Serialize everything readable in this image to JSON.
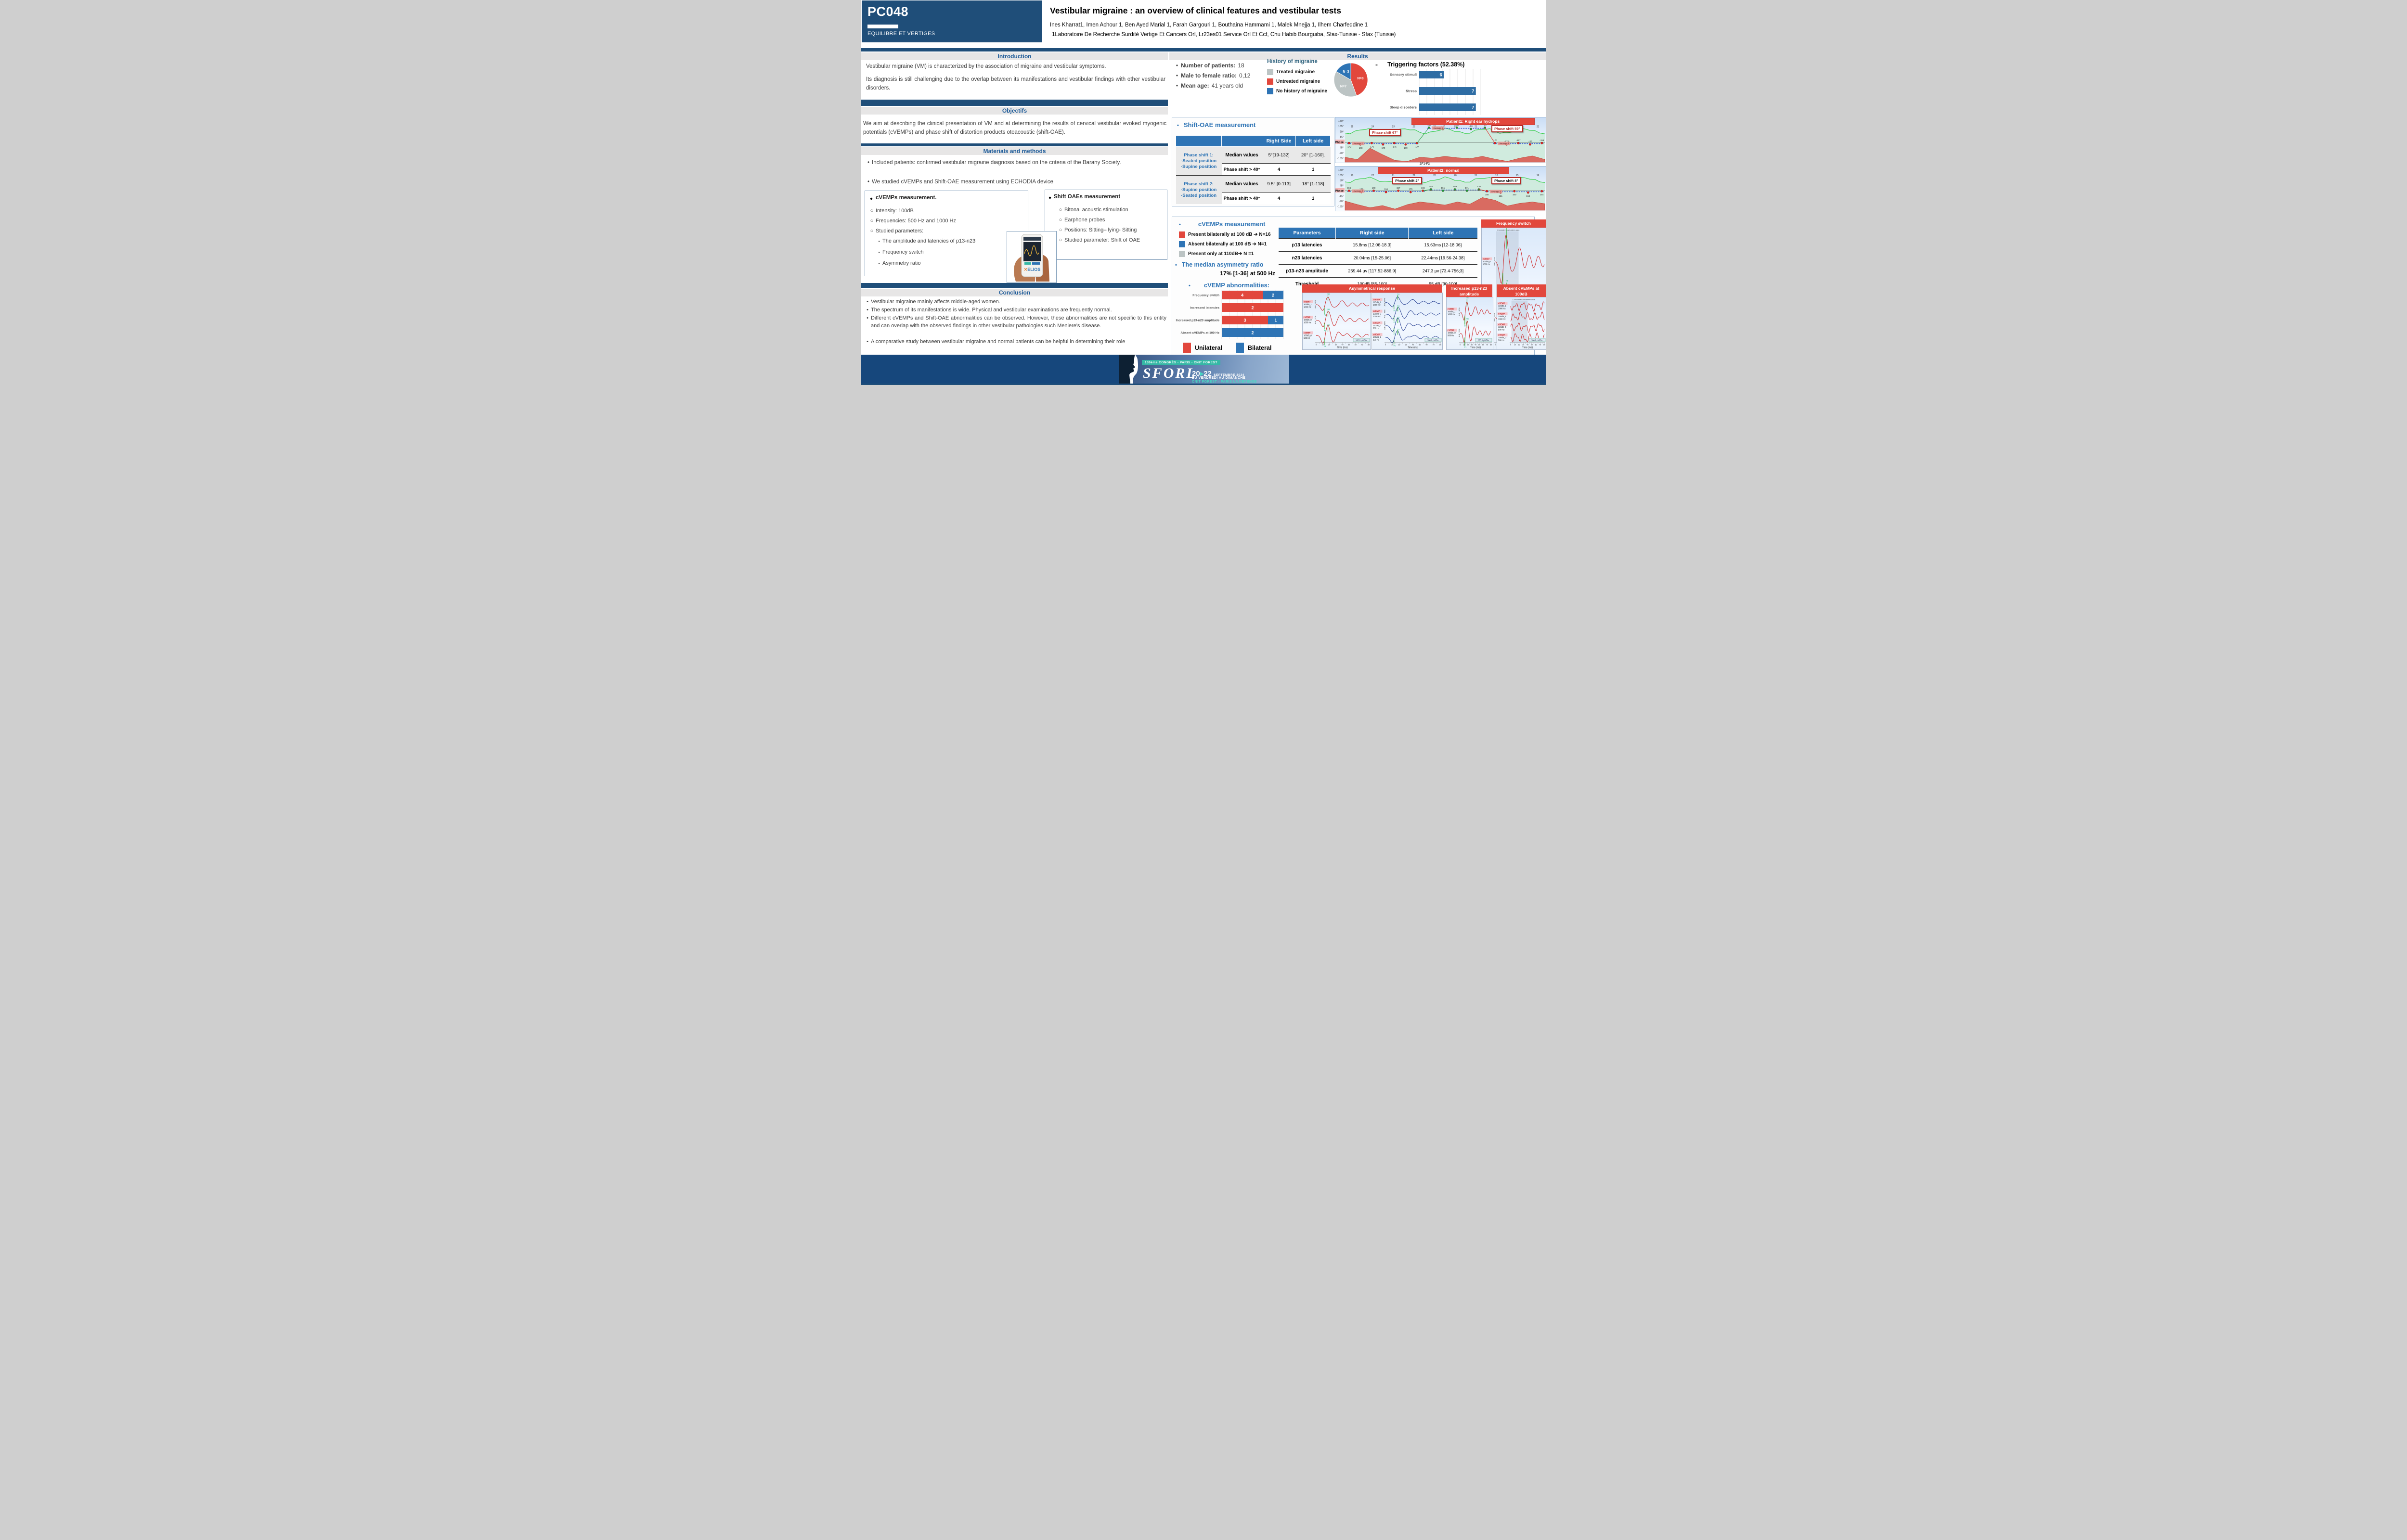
{
  "poster": {
    "code": "PC048",
    "track": "EQUILIBRE ET VERTIGES",
    "title": "Vestibular migraine : an overview of clinical features and vestibular tests",
    "authors": "Ines Kharrat1, Imen Achour 1, Ben Ayed Marial 1, Farah Gargouri 1, Bouthaina Hammami 1, Malek Mnejja 1, Ilhem Charfeddine 1",
    "affiliation": "1Laboratoire De Recherche Surdité Vertige Et Cancers Orl, Lr23es01 Service Orl Et Ccf, Chu Habib Bourguiba, Sfax-Tunisie - Sfax (Tunisie)"
  },
  "left": {
    "intro": {
      "title": "Introduction",
      "p1": "Vestibular migraine (VM) is characterized by the association of migraine and vestibular symptoms.",
      "p2": "Its diagnosis is still challenging due to the overlap between its manifestations and vestibular findings with other vestibular disorders."
    },
    "objectives": {
      "title": "Objectifs",
      "text": "We aim at describing the clinical presentation of VM and at determining the results of cervical vestibular evoked myogenic potentials (cVEMPs) and phase shift of distortion products otoacoustic (shift-OAE)."
    },
    "methods": {
      "title": "Materials and methods",
      "b1": "Included patients: confirmed vestibular migraine diagnosis based on the criteria of the Barany Society.",
      "b2": "We studied cVEMPs and Shift-OAE measurement using ECHODIA device",
      "cvemps_box": {
        "title": "cVEMPs measurement.",
        "items": [
          "Intensity: 100dB",
          "Frequencies: 500 Hz and 1000 Hz",
          "Studied parameters:"
        ],
        "subitems": [
          "The amplitude and latencies of p13-n23",
          "Frequency switch",
          "Asymmetry ratio"
        ]
      },
      "shift_box": {
        "title": "Shift OAEs measurement",
        "items": [
          "Bitonal acoustic stimulation",
          "Earphone probes",
          "Positions: Sitting– lying- Sitting",
          "Studied parameter: Shift of OAE"
        ]
      },
      "device_logo": "ELIOS"
    },
    "conclusion": {
      "title": "Conclusion",
      "bullets": [
        "Vestibular migraine mainly affects middle-aged women.",
        "The spectrum of its manifestations is wide. Physical and vestibular examinations are frequently normal.",
        "Different cVEMPs and Shift-OAE abnormalities can be observed. However, these abnormalities are not specific to this entity and can overlap with the observed findings in other vestibular pathologies such Meniere's disease.",
        "A comparative study between vestibular migraine and normal patients can be helpful in determining their role"
      ]
    }
  },
  "results": {
    "title": "Results",
    "demographics": [
      {
        "label": "Number of patients:",
        "value": "18"
      },
      {
        "label": "Male to female ratio:",
        "value": "0,12"
      },
      {
        "label": "Mean age:",
        "value": "41 years old"
      }
    ],
    "dash": "-",
    "shift_oae": {
      "title": "Shift-OAE measurement",
      "col_right": "Right Side",
      "col_left": "Left side",
      "group1": {
        "l0": "Phase shift 1:",
        "l1": "-Seated position",
        "l2": "-Supine position",
        "median_label": "Median values",
        "median_right": "5°[19-132]",
        "median_left": "20° [1-160].",
        "gt_label": "Phase shift > 40°",
        "gt_right": "4",
        "gt_left": "1"
      },
      "group2": {
        "l0": "Phase shift 2:",
        "l1": "-Supine position",
        "l2": "-Seated position",
        "median_label": "Median values",
        "median_right": "9.5° [0-113]",
        "median_left": "18° [1-118]",
        "gt_label": "Phase shift > 40°",
        "gt_right": "4",
        "gt_left": "1"
      }
    },
    "cvemps": {
      "title": "cVEMPs measurement",
      "legend": [
        {
          "color": "#e2473c",
          "text": "Present bilaterally at 100 dB ➔ N=16"
        },
        {
          "color": "#2e74b5",
          "text": "Absent bilaterally at 100 dB ➔ N=1"
        },
        {
          "color": "#bcc4c4",
          "text": "Present only at 110dB➔ N =1"
        }
      ],
      "asym_title": "The median asymmetry ratio",
      "asym_value": "17% [1-36] at 500 Hz",
      "table": {
        "headers": [
          "Parameters",
          "Right side",
          "Left side"
        ],
        "rows": [
          [
            "p13 latencies",
            "15.8ms  [12.06-18.3]",
            "15.63ms [12-18.06]"
          ],
          [
            "n23 latencies",
            "20.04ms  [15-25.06]",
            "22.44ms [19.56-24.38]"
          ],
          [
            "p13-n23 amplitude",
            "259.44 μv [117.52-886.9]",
            "247.3 μv [73.4-756;3]"
          ],
          [
            "Threshold",
            "100dB  [85-100]",
            "95 dB  [90;100]"
          ]
        ]
      }
    },
    "abnormalities": {
      "title": "cVEMP abnormalities:",
      "legend_unilateral": "Unilateral",
      "legend_bilateral": "Bilateral"
    }
  },
  "chart_data": [
    {
      "type": "pie",
      "title": "History of migraine",
      "slices": [
        {
          "label": "Untreated migraine",
          "value": 8,
          "display": "N=8",
          "color": "#e2473c"
        },
        {
          "label": "Treated migraine",
          "value": 7,
          "display": "N=7",
          "color": "#bcc4c4"
        },
        {
          "label": "No history of migraine",
          "value": 3,
          "display": "N=3",
          "color": "#2e74b5"
        }
      ],
      "legend": [
        {
          "label": "Treated migraine",
          "color": "#bcc4c4"
        },
        {
          "label": "Untreated migraine",
          "color": "#e2473c"
        },
        {
          "label": "No history of migraine",
          "color": "#2e74b5"
        }
      ]
    },
    {
      "type": "bar",
      "orientation": "horizontal",
      "title": "Triggering factors (52.38%)",
      "categories": [
        "Sensory stimuli",
        "Stress",
        "Sleep disorders"
      ],
      "values": [
        6,
        7,
        7
      ],
      "pixel_fractions": [
        0.4,
        0.92,
        0.92
      ],
      "color": "#2e6da4",
      "grid": true
    },
    {
      "type": "bar",
      "subtype": "stacked-100",
      "title": "cVEMP abnormalities",
      "categories": [
        "Frequency switch",
        "Increased latencies",
        "Increased p13-n23 amplitude",
        "Absent cVEMPs at 100 Hz"
      ],
      "series": [
        {
          "name": "Unilateral",
          "color": "#e2473c",
          "values": [
            4,
            2,
            3,
            0
          ]
        },
        {
          "name": "Bilateral",
          "color": "#2e74b5",
          "values": [
            2,
            0,
            1,
            2
          ]
        }
      ]
    },
    {
      "type": "line",
      "id": "phase1",
      "title": "Patient1: Right ear hydrops",
      "title_x": 0.36,
      "title_w": 0.58,
      "y_ticks": [
        "180°",
        "135°",
        "90°",
        "45°",
        "Phase",
        "-45°",
        "-90°",
        "-135°"
      ],
      "xlabel": "2F1-F2",
      "top_labels": [
        "25",
        "24",
        "23",
        "22",
        "21",
        "23",
        "21",
        "23",
        "24",
        "21"
      ],
      "annotations": [
        {
          "text": "Phase shift 67°",
          "x": 0.16,
          "y": 0.26,
          "color": "#b52a25"
        },
        {
          "text": "Phase shift 59°",
          "x": 0.74,
          "y": 0.17,
          "color": "#b52a25"
        }
      ],
      "segments": [
        {
          "color": "#e02020",
          "level": 0.58,
          "x0": 0.02,
          "x1": 0.36,
          "side": "below",
          "avg": "Average 1",
          "labels": [
            "-172",
            "-168",
            "-176",
            "-179",
            "-175",
            "179",
            "-174"
          ]
        },
        {
          "color": "#1a9c3a",
          "level": 0.24,
          "x0": 0.42,
          "x1": 0.7,
          "side": "above",
          "avg": "Average 2",
          "labels": [
            "-106",
            "-110",
            "-108",
            "-98",
            "-99"
          ]
        },
        {
          "color": "#e02020",
          "level": 0.58,
          "x0": 0.75,
          "x1": 0.985,
          "side": "above",
          "avg": "Average 3",
          "labels": [
            "-170",
            "-172",
            "-167",
            "-167",
            "-159"
          ]
        }
      ],
      "mountain": [
        0.88,
        0.93,
        0.68,
        0.82,
        0.95,
        0.97,
        0.88,
        0.9,
        0.86,
        0.89,
        0.91,
        0.86,
        0.92,
        0.97,
        0.9,
        0.85,
        0.93
      ]
    },
    {
      "type": "line",
      "id": "phase2",
      "title": "Patient2: normal",
      "title_x": 0.2,
      "title_w": 0.62,
      "y_ticks": [
        "180°",
        "135°",
        "90°",
        "45°",
        "Phase",
        "-45°",
        "-90°",
        "-135°"
      ],
      "xlabel": "",
      "top_labels": [
        "18",
        "22",
        "21",
        "21",
        "20",
        "20",
        "21",
        "18",
        "15",
        "19"
      ],
      "annotations": [
        {
          "text": "Phase shift 2°",
          "x": 0.27,
          "y": 0.24,
          "color": "#111111"
        },
        {
          "text": "Phase shift 8°",
          "x": 0.74,
          "y": 0.24,
          "color": "#111111"
        }
      ],
      "segments": [
        {
          "color": "#e02020",
          "level": 0.56,
          "x0": 0.02,
          "x1": 0.39,
          "side": "above",
          "avg": "Average 2",
          "labels": [
            "156",
            "159",
            "160",
            "164",
            "157",
            "155",
            "166"
          ]
        },
        {
          "color": "#1a9c3a",
          "level": 0.53,
          "x0": 0.43,
          "x1": 0.67,
          "side": "above",
          "avg": "",
          "labels": [
            "152",
            "161",
            "159",
            "171",
            "170"
          ]
        },
        {
          "color": "#e02020",
          "level": 0.57,
          "x0": 0.71,
          "x1": 0.985,
          "side": "below",
          "avg": "Average 3",
          "labels": [
            "155",
            "151",
            "150",
            "153",
            "154"
          ]
        }
      ],
      "mountain": [
        0.78,
        0.86,
        0.93,
        0.88,
        0.96,
        0.86,
        0.8,
        0.83,
        0.87,
        0.8,
        0.85,
        0.7,
        0.76,
        0.89,
        0.83,
        0.8,
        0.84
      ]
    }
  ],
  "wave_panels": {
    "axis": {
      "min": 0,
      "max": 80,
      "step": 5,
      "label": "Time (ms)"
    },
    "freq_switch": {
      "header": "Frequency switch",
      "corr": "Correlation calculation area",
      "div": "100.0 μV/Div.",
      "color": "#cc2222",
      "markers": [
        "P1",
        "N1"
      ],
      "traces": [
        {
          "label": "cVEMP 100dB_0 1000 Hz",
          "ab": "A-B : 97%"
        },
        {
          "label": "cVEMP 100dB_1 500 Hz",
          "ab": "A-B : 92%"
        }
      ]
    },
    "asym_red": {
      "header": "Asymmetrical response",
      "div": "100.0 μV/Div.",
      "color": "#cc2222",
      "markers": [
        "P1",
        "N1"
      ],
      "traces": [
        {
          "label": "cVEMP 100dB_1 1000 Hz",
          "ab": "A-B : 96%"
        },
        {
          "label": "cVEMP 100dB_0 1000 Hz",
          "ab": "A-B : 97%"
        },
        {
          "label": "cVEMP 100dB_0 500 Hz",
          "ab": ""
        }
      ]
    },
    "asym_blue": {
      "div": "100.0 μV/Div.",
      "color": "#223b8f",
      "markers": [
        "P1",
        "N1"
      ],
      "traces": [
        {
          "label": "cVEMP 110dB_1 1000 Hz",
          "ab": "A-B : 80%"
        },
        {
          "label": "cVEMP 100dB_0 1000 Hz",
          "ab": "A-B : 46%"
        },
        {
          "label": "cVEMP 110dB_0 500 Hz",
          "ab": "A-B : 69%"
        },
        {
          "label": "cVEMP 100dB_1 500 Hz",
          "ab": ""
        }
      ]
    },
    "increased": {
      "header": "Increased p13-n23 amplitude",
      "div": "250.0 μV/Div.",
      "color": "#cc2222",
      "markers": [
        "P1",
        "N1"
      ],
      "traces": [
        {
          "label": "cVEMP 100dB_1 1000 Hz",
          "ab": "A-B : 86%"
        },
        {
          "label": "cVEMP 100dB_0 500 Hz",
          "ab": "A-B : 55%"
        }
      ]
    },
    "absent": {
      "header": "Absent cVEMPs at 100dB",
      "corr": "Correlation calculation area",
      "div": "100.0 μV/Div.",
      "color": "#cc2222",
      "flat": true,
      "traces": [
        {
          "label": "cVEMP 110dB_1 1000 Hz",
          "ab": ""
        },
        {
          "label": "cVEMP 100dB_1 1000 Hz",
          "ab": ""
        },
        {
          "label": "cVEMP 110dB_0 500 Hz",
          "ab": ""
        },
        {
          "label": "cVEMP 100dB_0 500 Hz",
          "ab": ""
        }
      ]
    }
  },
  "banner": {
    "ribbon": "130ème CONGRÈS - PARIS - CNIT FOREST",
    "logo": "SFORL",
    "date_from": "20",
    "date_arrow": "▸",
    "date_to": "22",
    "date_rest": "SEPTEMBRE 2024",
    "line1": "DU VENDREDI AU DIMANCHE",
    "line2": "CNIT FOREST - PARIS LA DÉFENSE"
  }
}
